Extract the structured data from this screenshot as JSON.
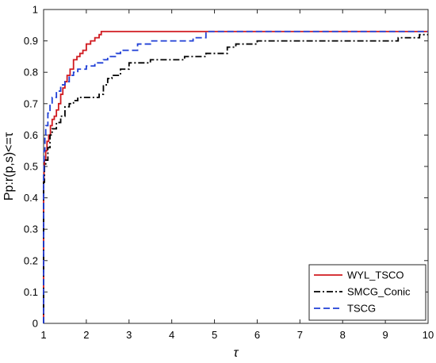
{
  "chart_data": {
    "type": "line",
    "title": "",
    "xlabel": "τ",
    "ylabel": "Pp:r(p,s)<=τ",
    "xlim": [
      1,
      10
    ],
    "ylim": [
      0,
      1
    ],
    "xticks": [
      "1",
      "2",
      "3",
      "4",
      "5",
      "6",
      "7",
      "8",
      "9",
      "10"
    ],
    "yticks": [
      "0",
      "0.1",
      "0.2",
      "0.3",
      "0.4",
      "0.5",
      "0.6",
      "0.7",
      "0.8",
      "0.9",
      "1"
    ],
    "legend_position": "bottom-right",
    "grid": false,
    "series": [
      {
        "name": "WYL_TSCO",
        "color": "#d0191f",
        "style": "solid",
        "x": [
          1.0,
          1.0,
          1.01,
          1.02,
          1.05,
          1.08,
          1.12,
          1.16,
          1.2,
          1.25,
          1.3,
          1.35,
          1.4,
          1.45,
          1.5,
          1.55,
          1.62,
          1.7,
          1.78,
          1.85,
          1.92,
          2.0,
          2.1,
          2.2,
          2.3,
          2.35,
          3.0,
          5.0,
          10.0
        ],
        "y": [
          0.0,
          0.45,
          0.5,
          0.52,
          0.55,
          0.58,
          0.6,
          0.63,
          0.65,
          0.66,
          0.68,
          0.7,
          0.73,
          0.75,
          0.77,
          0.79,
          0.81,
          0.84,
          0.85,
          0.86,
          0.87,
          0.89,
          0.9,
          0.91,
          0.92,
          0.93,
          0.93,
          0.93,
          0.93
        ]
      },
      {
        "name": "SMCG_Conic",
        "color": "#000000",
        "style": "dashdot",
        "x": [
          1.0,
          1.0,
          1.02,
          1.05,
          1.1,
          1.15,
          1.2,
          1.3,
          1.4,
          1.5,
          1.6,
          1.7,
          1.8,
          2.0,
          2.2,
          2.3,
          2.4,
          2.5,
          2.6,
          2.8,
          3.0,
          3.5,
          4.0,
          4.3,
          4.8,
          5.0,
          5.3,
          5.5,
          6.0,
          9.0,
          9.3,
          9.5,
          9.8,
          10.0
        ],
        "y": [
          0.0,
          0.45,
          0.5,
          0.52,
          0.56,
          0.6,
          0.62,
          0.64,
          0.66,
          0.69,
          0.7,
          0.71,
          0.72,
          0.72,
          0.72,
          0.73,
          0.76,
          0.78,
          0.79,
          0.81,
          0.83,
          0.84,
          0.84,
          0.85,
          0.86,
          0.86,
          0.88,
          0.89,
          0.9,
          0.9,
          0.91,
          0.91,
          0.92,
          0.92
        ]
      },
      {
        "name": "TSCG",
        "color": "#1f3fd6",
        "style": "dashed",
        "x": [
          1.0,
          1.0,
          1.01,
          1.03,
          1.05,
          1.1,
          1.15,
          1.2,
          1.3,
          1.4,
          1.5,
          1.6,
          1.7,
          1.8,
          2.0,
          2.2,
          2.4,
          2.5,
          2.7,
          2.8,
          3.0,
          3.2,
          3.5,
          4.0,
          4.5,
          4.8,
          5.0,
          6.0,
          10.0
        ],
        "y": [
          0.0,
          0.48,
          0.55,
          0.6,
          0.63,
          0.67,
          0.7,
          0.72,
          0.74,
          0.76,
          0.77,
          0.79,
          0.8,
          0.81,
          0.82,
          0.83,
          0.84,
          0.85,
          0.86,
          0.87,
          0.87,
          0.89,
          0.9,
          0.9,
          0.91,
          0.93,
          0.93,
          0.93,
          0.93
        ]
      }
    ]
  }
}
